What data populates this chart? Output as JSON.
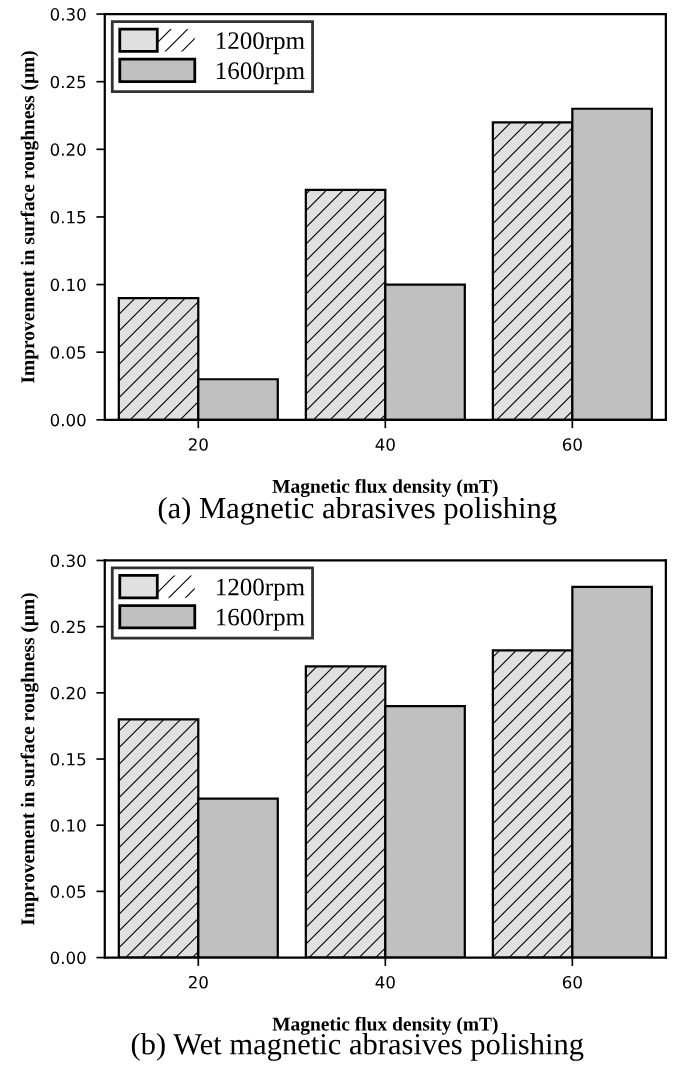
{
  "chart_data": [
    {
      "type": "bar",
      "categories": [
        "20",
        "40",
        "60"
      ],
      "xlabel": "Magnetic flux density (mT)",
      "ylabel": "Improvement in surface roughness (μm)",
      "ylim": [
        0,
        0.3
      ],
      "yticks": [
        {
          "value": 0,
          "label": "0.00"
        },
        {
          "value": 0.05,
          "label": "0.05"
        },
        {
          "value": 0.1,
          "label": "0.10"
        },
        {
          "value": 0.15,
          "label": "0.15"
        },
        {
          "value": 0.2,
          "label": "0.20"
        },
        {
          "value": 0.25,
          "label": "0.25"
        },
        {
          "value": 0.3,
          "label": "0.30"
        }
      ],
      "legend": "top left",
      "annotations": [
        "(a) Magnetic abrasives polishing"
      ],
      "series": [
        {
          "name": "1200rpm",
          "color": "#e0e0e0",
          "values": [
            0.09,
            0.17,
            0.22
          ]
        },
        {
          "name": "1600rpm",
          "color": "#c0c0c0",
          "values": [
            0.03,
            0.1,
            0.23
          ]
        }
      ]
    },
    {
      "type": "bar",
      "categories": [
        "20",
        "40",
        "60"
      ],
      "xlabel": "Magnetic flux density (mT)",
      "ylabel": "Improvement in surface roughness (μm)",
      "ylim": [
        0,
        0.3
      ],
      "yticks": [
        {
          "value": 0,
          "label": "0.00"
        },
        {
          "value": 0.05,
          "label": "0.05"
        },
        {
          "value": 0.1,
          "label": "0.10"
        },
        {
          "value": 0.15,
          "label": "0.15"
        },
        {
          "value": 0.2,
          "label": "0.20"
        },
        {
          "value": 0.25,
          "label": "0.25"
        },
        {
          "value": 0.3,
          "label": "0.30"
        }
      ],
      "legend": "top left",
      "annotations": [
        "(b) Wet magnetic abrasives polishing"
      ],
      "series": [
        {
          "name": "1200rpm",
          "color": "#e0e0e0",
          "values": [
            0.18,
            0.22,
            0.232
          ]
        },
        {
          "name": "1600rpm",
          "color": "#c0c0c0",
          "values": [
            0.12,
            0.19,
            0.28
          ]
        }
      ]
    }
  ]
}
